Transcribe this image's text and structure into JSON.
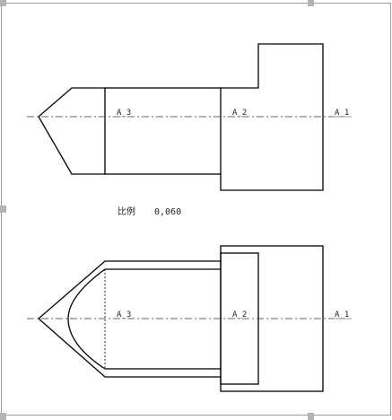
{
  "drawing": {
    "top_view": {
      "axis_labels": [
        "A_3",
        "A_2",
        "A_1"
      ]
    },
    "scale": {
      "label": "比例",
      "value": "0,060"
    },
    "bottom_view": {
      "axis_labels": [
        "A_3",
        "A_2",
        "A_1"
      ]
    }
  },
  "colors": {
    "line": "#000000",
    "axis": "#333333",
    "handle": "#b3b3b3",
    "frame": "#9a9a9a"
  }
}
